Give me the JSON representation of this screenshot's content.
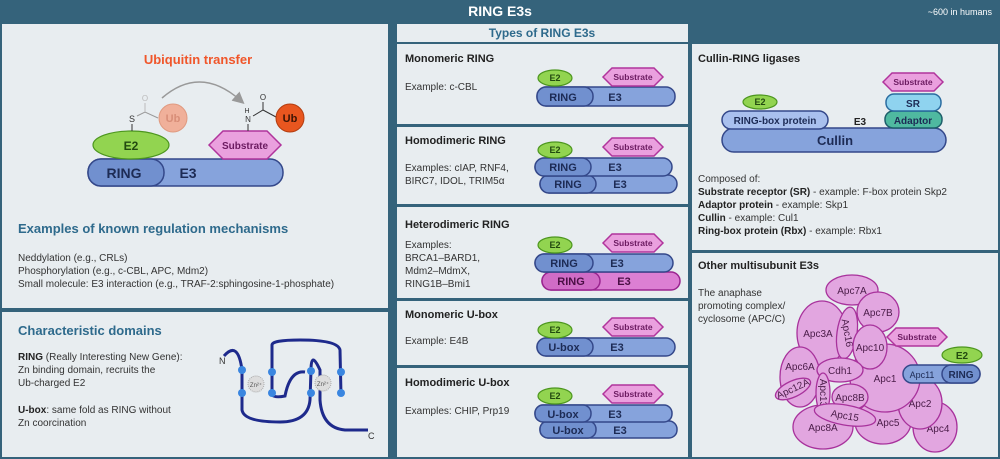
{
  "header": {
    "title": "RING E3s",
    "count": "~600 in humans"
  },
  "colors": {
    "header_bg": "#35637b",
    "panel_bg": "#e8edf0",
    "heading": "#2e6a8c",
    "ubiquitin_title": "#f0562a",
    "e3_blue": "#86a3dc",
    "e2_green": "#92d450",
    "substrate_pink": "#eaa0de",
    "apc_pink": "#e2a6e0",
    "adaptor_teal": "#4fb9a0",
    "sr_cyan": "#8fd3ef"
  },
  "ubiquitin": {
    "title": "Ubiquitin transfer",
    "ub": "Ub",
    "e2": "E2",
    "substrate": "Substrate",
    "ring": "RING",
    "e3": "E3",
    "s": "S",
    "o": "O",
    "h": "H",
    "n": "N"
  },
  "regulation": {
    "title": "Examples of known regulation mechanisms",
    "items": [
      "Neddylation (e.g., CRLs)",
      "Phosphorylation (e.g., c-CBL, APC, Mdm2)",
      "Small molecule: E3 interaction (e.g., TRAF-2:sphingosine-1-phosphate)"
    ]
  },
  "domains": {
    "title": "Characteristic domains",
    "ring_term": "RING",
    "ring_desc": [
      " (Really Interesting New Gene):",
      "Zn binding domain, recruits the",
      "Ub-charged E2"
    ],
    "ubox_term": "U-box",
    "ubox_desc": [
      ": same fold as RING without",
      "Zn coorcination"
    ],
    "zn": "Zn²⁺",
    "n_term": "N",
    "c_term": "C"
  },
  "types": {
    "title": "Types of RING E3s",
    "monomeric_ring": {
      "title": "Monomeric RING",
      "lines": [
        "Example: c-CBL"
      ]
    },
    "homodimeric_ring": {
      "title": "Homodimeric RING",
      "lines": [
        "Examples: cIAP, RNF4,",
        "BIRC7, IDOL, TRIM5α"
      ]
    },
    "heterodimeric_ring": {
      "title": "Heterodimeric RING",
      "lines": [
        "Examples:",
        "BRCA1–BARD1,",
        "Mdm2–MdmX,",
        "RING1B–Bmi1"
      ]
    },
    "monomeric_ubox": {
      "title": "Monomeric U-box",
      "lines": [
        "Example: E4B"
      ]
    },
    "homodimeric_ubox": {
      "title": "Homodimeric U-box",
      "lines": [
        "Examples: CHIP, Prp19"
      ]
    },
    "labels": {
      "e2": "E2",
      "substrate": "Substrate",
      "ring": "RING",
      "e3": "E3",
      "ubox": "U-box"
    }
  },
  "cullin": {
    "title": "Cullin-RING ligases",
    "labels": {
      "substrate": "Substrate",
      "sr": "SR",
      "adaptor": "Adaptor",
      "e2": "E2",
      "ringbox": "RING-box protein",
      "e3": "E3",
      "cullin": "Cullin"
    },
    "composed": "Composed of:",
    "parts": [
      {
        "term": "Substrate receptor (SR)",
        "desc": " - example: F-box protein Skp2"
      },
      {
        "term": "Adaptor protein",
        "desc": " - example: Skp1"
      },
      {
        "term": "Cullin",
        "desc": " - example: Cul1"
      },
      {
        "term": "Ring-box protein (Rbx)",
        "desc": " -  example: Rbx1"
      }
    ]
  },
  "other": {
    "title": "Other multisubunit E3s",
    "desc": [
      "The anaphase",
      "promoting complex/",
      "cyclosome (APC/C)"
    ],
    "subunits": {
      "apc7a": "Apc7A",
      "apc7b": "Apc7B",
      "apc3a": "Apc3A",
      "apc16": "Apc16",
      "apc10": "Apc10",
      "apc6a": "Apc6A",
      "apc12a": "Apc12A",
      "cdh1": "Cdh1",
      "apc13": "Apc13",
      "apc8b": "Apc8B",
      "apc1": "Apc1",
      "apc15": "Apc15",
      "apc8a": "Apc8A",
      "apc5": "Apc5",
      "apc2": "Apc2",
      "apc4": "Apc4",
      "apc11": "Apc11"
    },
    "labels": {
      "substrate": "Substrate",
      "e2": "E2",
      "ring": "RING"
    }
  }
}
